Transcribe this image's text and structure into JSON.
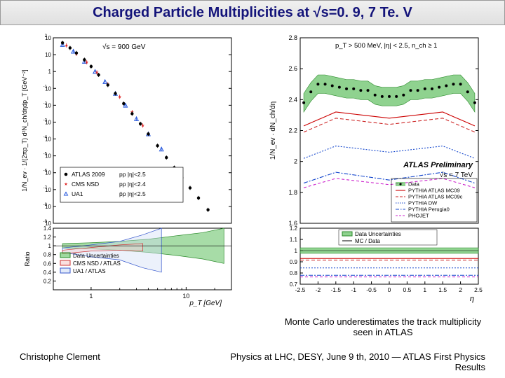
{
  "slide": {
    "title": "Charged Particle Multiplicities at √s=0. 9, 7 Te. V",
    "caption_right": "Monte Carlo underestimates the track multiplicity seen in ATLAS",
    "footer_left": "Christophe Clement",
    "footer_right": "Physics at LHC,  DESY, June  9 th, 2010  — ATLAS First Physics Results"
  },
  "left_chart": {
    "type": "log-log-scatter-with-ratio",
    "upper": {
      "ylabel": "1/N_ev · 1/(2πp_T) d²N_ch/dηdp_T  [GeV⁻²]",
      "condition_text": "√s = 900 GeV",
      "ylim_exp": [
        -9,
        2
      ],
      "ytick_exps": [
        -9,
        -8,
        -7,
        -6,
        -5,
        -4,
        -3,
        -2,
        -1,
        0,
        1,
        2
      ],
      "xlim": [
        0.4,
        30
      ],
      "legend": [
        {
          "marker": "circle_filled",
          "color": "#000000",
          "label": "ATLAS 2009",
          "desc": "pp  |η|<2.5"
        },
        {
          "marker": "star_filled",
          "color": "#d22",
          "label": "CMS NSD",
          "desc": "pp  |η|<2.4"
        },
        {
          "marker": "triangle_open",
          "color": "#2255dd",
          "label": "UA1",
          "desc": "p̄p  |η|<2.5"
        }
      ],
      "atlas_points": [
        {
          "pt": 0.5,
          "y_exp": 1.7
        },
        {
          "pt": 0.6,
          "y_exp": 1.4
        },
        {
          "pt": 0.7,
          "y_exp": 1.1
        },
        {
          "pt": 0.85,
          "y_exp": 0.7
        },
        {
          "pt": 1.0,
          "y_exp": 0.3
        },
        {
          "pt": 1.2,
          "y_exp": -0.2
        },
        {
          "pt": 1.5,
          "y_exp": -0.8
        },
        {
          "pt": 1.8,
          "y_exp": -1.3
        },
        {
          "pt": 2.2,
          "y_exp": -1.9
        },
        {
          "pt": 2.7,
          "y_exp": -2.5
        },
        {
          "pt": 3.3,
          "y_exp": -3.1
        },
        {
          "pt": 4.0,
          "y_exp": -3.7
        },
        {
          "pt": 5.0,
          "y_exp": -4.4
        },
        {
          "pt": 6.2,
          "y_exp": -5.1
        },
        {
          "pt": 7.5,
          "y_exp": -5.7
        },
        {
          "pt": 9.0,
          "y_exp": -6.3
        },
        {
          "pt": 11.0,
          "y_exp": -6.9
        },
        {
          "pt": 13.5,
          "y_exp": -7.5
        },
        {
          "pt": 17.0,
          "y_exp": -8.2
        }
      ],
      "cms_points": [
        {
          "pt": 0.55,
          "y_exp": 1.55
        },
        {
          "pt": 0.7,
          "y_exp": 1.05
        },
        {
          "pt": 0.9,
          "y_exp": 0.55
        },
        {
          "pt": 1.15,
          "y_exp": -0.05
        },
        {
          "pt": 1.5,
          "y_exp": -0.75
        },
        {
          "pt": 2.0,
          "y_exp": -1.5
        },
        {
          "pt": 2.7,
          "y_exp": -2.4
        },
        {
          "pt": 3.5,
          "y_exp": -3.2
        }
      ],
      "ua1_points": [
        {
          "pt": 0.5,
          "y_exp": 1.6
        },
        {
          "pt": 0.65,
          "y_exp": 1.2
        },
        {
          "pt": 0.85,
          "y_exp": 0.6
        },
        {
          "pt": 1.1,
          "y_exp": 0.0
        },
        {
          "pt": 1.4,
          "y_exp": -0.6
        },
        {
          "pt": 1.8,
          "y_exp": -1.3
        },
        {
          "pt": 2.3,
          "y_exp": -2.0
        },
        {
          "pt": 3.0,
          "y_exp": -2.8
        },
        {
          "pt": 4.0,
          "y_exp": -3.7
        },
        {
          "pt": 5.5,
          "y_exp": -4.6
        }
      ]
    },
    "ratio": {
      "ylabel": "Ratio",
      "ylim": [
        0,
        1.4
      ],
      "yticks": [
        0.2,
        0.4,
        0.6,
        0.8,
        1.0,
        1.2,
        1.4
      ],
      "xlabel": "p_T   [GeV]",
      "xticks": [
        1,
        10
      ],
      "legend": [
        {
          "fill": "#5fbf5f",
          "border": "#2a8a2a",
          "label": "Data Uncertainties"
        },
        {
          "fill": "#f5cccc",
          "border": "#cc3333",
          "label": "CMS NSD / ATLAS"
        },
        {
          "fill": "#cfdcf5",
          "border": "#3355cc",
          "label": "UA1 / ATLAS"
        }
      ],
      "unc_band": [
        {
          "pt": 0.5,
          "lo": 0.95,
          "hi": 1.05
        },
        {
          "pt": 1,
          "lo": 0.93,
          "hi": 1.07
        },
        {
          "pt": 2,
          "lo": 0.9,
          "hi": 1.1
        },
        {
          "pt": 4,
          "lo": 0.85,
          "hi": 1.15
        },
        {
          "pt": 8,
          "lo": 0.78,
          "hi": 1.23
        },
        {
          "pt": 15,
          "lo": 0.7,
          "hi": 1.3
        },
        {
          "pt": 25,
          "lo": 0.6,
          "hi": 1.4
        }
      ],
      "cms_band": [
        {
          "pt": 0.5,
          "lo": 0.82,
          "hi": 0.9
        },
        {
          "pt": 1,
          "lo": 0.88,
          "hi": 0.96
        },
        {
          "pt": 2,
          "lo": 0.9,
          "hi": 1.02
        },
        {
          "pt": 3.5,
          "lo": 0.88,
          "hi": 1.05
        }
      ],
      "ua1_band": [
        {
          "pt": 0.5,
          "lo": 0.85,
          "hi": 0.95
        },
        {
          "pt": 1,
          "lo": 0.75,
          "hi": 1.02
        },
        {
          "pt": 2,
          "lo": 0.68,
          "hi": 1.1
        },
        {
          "pt": 3.5,
          "lo": 0.5,
          "hi": 1.25
        },
        {
          "pt": 5.5,
          "lo": 0.4,
          "hi": 1.4
        }
      ]
    },
    "colors": {
      "frame": "#000000",
      "grid": "#bbbbbb",
      "data_unc": "#5fbf5f",
      "data_unc_border": "#2a8a2a",
      "cms_fill": "#f5cccc",
      "cms_border": "#cc3333",
      "ua1_fill": "#cfdcf5",
      "ua1_border": "#3355cc"
    }
  },
  "right_chart": {
    "type": "line-with-ratio",
    "upper": {
      "ylabel": "1/N_ev · dN_ch/dη",
      "ylim": [
        1.6,
        2.8
      ],
      "yticks": [
        1.6,
        1.8,
        2.0,
        2.2,
        2.4,
        2.6,
        2.8
      ],
      "xlim": [
        -2.5,
        2.5
      ],
      "condition_text": "p_T > 500 MeV, |η| < 2.5, n_ch ≥ 1",
      "badge": "ATLAS Preliminary",
      "energy_text": "√s = 7 TeV",
      "legend": [
        {
          "style": "band_points",
          "color": "#000000",
          "fill": "#5fbf5f",
          "label": "Data"
        },
        {
          "style": "line_solid",
          "color": "#cc0000",
          "label": "PYTHIA ATLAS MC09"
        },
        {
          "style": "line_dash",
          "color": "#cc2222",
          "label": "PYTHIA ATLAS MC09c"
        },
        {
          "style": "line_dot",
          "color": "#1144cc",
          "label": "PYTHIA DW"
        },
        {
          "style": "line_dashdot",
          "color": "#1144cc",
          "label": "PYTHIA Perugia0"
        },
        {
          "style": "line_dash2",
          "color": "#cc22cc",
          "label": "PHOJET"
        }
      ],
      "data_points": [
        {
          "eta": -2.4,
          "y": 2.38
        },
        {
          "eta": -2.2,
          "y": 2.45
        },
        {
          "eta": -2.0,
          "y": 2.5
        },
        {
          "eta": -1.8,
          "y": 2.5
        },
        {
          "eta": -1.6,
          "y": 2.49
        },
        {
          "eta": -1.4,
          "y": 2.48
        },
        {
          "eta": -1.2,
          "y": 2.47
        },
        {
          "eta": -1.0,
          "y": 2.47
        },
        {
          "eta": -0.8,
          "y": 2.46
        },
        {
          "eta": -0.6,
          "y": 2.46
        },
        {
          "eta": -0.4,
          "y": 2.43
        },
        {
          "eta": -0.2,
          "y": 2.42
        },
        {
          "eta": 0.0,
          "y": 2.42
        },
        {
          "eta": 0.2,
          "y": 2.42
        },
        {
          "eta": 0.4,
          "y": 2.43
        },
        {
          "eta": 0.6,
          "y": 2.46
        },
        {
          "eta": 0.8,
          "y": 2.46
        },
        {
          "eta": 1.0,
          "y": 2.47
        },
        {
          "eta": 1.2,
          "y": 2.47
        },
        {
          "eta": 1.4,
          "y": 2.48
        },
        {
          "eta": 1.6,
          "y": 2.49
        },
        {
          "eta": 1.8,
          "y": 2.5
        },
        {
          "eta": 2.0,
          "y": 2.5
        },
        {
          "eta": 2.2,
          "y": 2.45
        },
        {
          "eta": 2.4,
          "y": 2.38
        }
      ],
      "data_band_halfwidth": 0.06,
      "mc_curves": {
        "MC09": [
          {
            "eta": -2.4,
            "y": 2.23
          },
          {
            "eta": -1.5,
            "y": 2.32
          },
          {
            "eta": 0,
            "y": 2.28
          },
          {
            "eta": 1.5,
            "y": 2.32
          },
          {
            "eta": 2.4,
            "y": 2.23
          }
        ],
        "MC09c": [
          {
            "eta": -2.4,
            "y": 2.19
          },
          {
            "eta": -1.5,
            "y": 2.28
          },
          {
            "eta": 0,
            "y": 2.24
          },
          {
            "eta": 1.5,
            "y": 2.28
          },
          {
            "eta": 2.4,
            "y": 2.19
          }
        ],
        "DW": [
          {
            "eta": -2.4,
            "y": 2.02
          },
          {
            "eta": -1.5,
            "y": 2.1
          },
          {
            "eta": 0,
            "y": 2.06
          },
          {
            "eta": 1.5,
            "y": 2.1
          },
          {
            "eta": 2.4,
            "y": 2.02
          }
        ],
        "Perugia0": [
          {
            "eta": -2.4,
            "y": 1.86
          },
          {
            "eta": -1.5,
            "y": 1.93
          },
          {
            "eta": 0,
            "y": 1.88
          },
          {
            "eta": 1.5,
            "y": 1.93
          },
          {
            "eta": 2.4,
            "y": 1.86
          }
        ],
        "PHOJET": [
          {
            "eta": -2.4,
            "y": 1.83
          },
          {
            "eta": -1.5,
            "y": 1.89
          },
          {
            "eta": 0,
            "y": 1.85
          },
          {
            "eta": 1.5,
            "y": 1.89
          },
          {
            "eta": 2.4,
            "y": 1.83
          }
        ]
      }
    },
    "ratio": {
      "ylim": [
        0.7,
        1.2
      ],
      "yticks": [
        0.7,
        0.8,
        0.9,
        1.0,
        1.1,
        1.2
      ],
      "xlabel": "η",
      "xticks": [
        -2.5,
        -2,
        -1.5,
        -1,
        -0.5,
        0,
        0.5,
        1,
        1.5,
        2,
        2.5
      ],
      "legend": [
        {
          "fill": "#5fbf5f",
          "border": "#2a8a2a",
          "label": "Data Uncertainties"
        },
        {
          "style": "line",
          "color": "#000000",
          "label": "MC / Data"
        }
      ],
      "unc_band": {
        "lo": 0.975,
        "hi": 1.025
      },
      "mc_ratio": {
        "MC09": 0.93,
        "MC09c": 0.915,
        "DW": 0.845,
        "Perugia0": 0.78,
        "PHOJET": 0.765
      }
    },
    "colors": {
      "frame": "#000000",
      "data_unc": "#5fbf5f",
      "data_unc_border": "#2a8a2a"
    }
  }
}
